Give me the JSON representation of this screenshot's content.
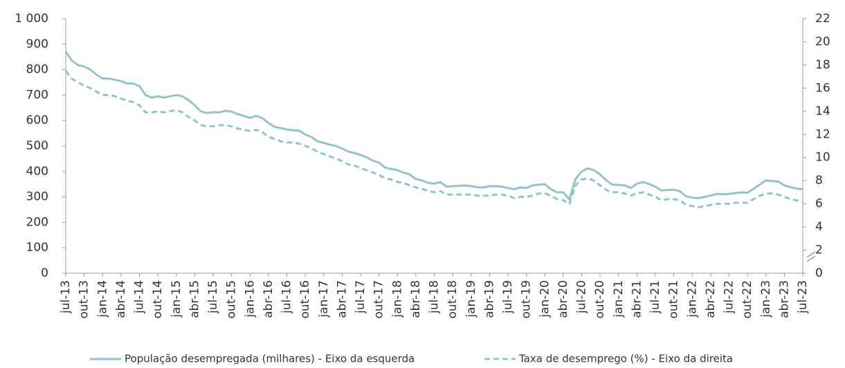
{
  "chart_data": {
    "type": "line",
    "categories": [
      "jul-13",
      null,
      null,
      "out-13",
      null,
      null,
      "jan-14",
      null,
      null,
      "abr-14",
      null,
      null,
      "jul-14",
      null,
      null,
      "out-14",
      null,
      null,
      "jan-15",
      null,
      null,
      "abr-15",
      null,
      null,
      "jul-15",
      null,
      null,
      "out-15",
      null,
      null,
      "jan-16",
      null,
      null,
      "abr-16",
      null,
      null,
      "jul-16",
      null,
      null,
      "out-16",
      null,
      null,
      "jan-17",
      null,
      null,
      "abr-17",
      null,
      null,
      "jul-17",
      null,
      null,
      "out-17",
      null,
      null,
      "jan-18",
      null,
      null,
      "abr-18",
      null,
      null,
      "jul-18",
      null,
      null,
      "out-18",
      null,
      null,
      "jan-19",
      null,
      null,
      "abr-19",
      null,
      null,
      "jul-19",
      null,
      null,
      "out-19",
      null,
      null,
      "jan-20",
      null,
      null,
      "abr-20",
      null,
      null,
      "jul-20",
      null,
      null,
      "out-20",
      null,
      null,
      "jan-21",
      null,
      null,
      "abr-21",
      null,
      null,
      "jul-21",
      null,
      null,
      "out-21",
      null,
      null,
      "jan-22",
      null,
      null,
      "abr-22",
      null,
      null,
      "jul-22",
      null,
      null,
      "out-22",
      null,
      null,
      "jan-23",
      null,
      null,
      "abr-23",
      null,
      null,
      "jul-23"
    ],
    "series": [
      {
        "name": "População desempregada (milhares) - Eixo da esquerda",
        "color": "#8ec5cb",
        "dash": false,
        "values": [
          870,
          835,
          818,
          812,
          800,
          780,
          765,
          765,
          760,
          755,
          745,
          745,
          735,
          700,
          690,
          695,
          690,
          695,
          700,
          695,
          680,
          660,
          635,
          630,
          632,
          632,
          638,
          635,
          625,
          618,
          610,
          618,
          610,
          590,
          575,
          570,
          565,
          562,
          560,
          545,
          535,
          518,
          512,
          505,
          500,
          490,
          478,
          472,
          465,
          455,
          442,
          435,
          415,
          410,
          405,
          395,
          388,
          370,
          365,
          355,
          352,
          358,
          340,
          342,
          343,
          345,
          342,
          338,
          337,
          342,
          342,
          340,
          335,
          330,
          337,
          335,
          345,
          348,
          350,
          330,
          318,
          318,
          290,
          370,
          400,
          412,
          405,
          388,
          365,
          348,
          347,
          345,
          335,
          352,
          358,
          350,
          340,
          325,
          327,
          328,
          322,
          302,
          297,
          295,
          300,
          305,
          312,
          310,
          312,
          315,
          318,
          316,
          332,
          348,
          365,
          362,
          360,
          345,
          338,
          333,
          330
        ]
      },
      {
        "name": "Taxa de desemprego (%) - Eixo da direita",
        "color": "#8ec5cb",
        "dash": true,
        "axis": "y2",
        "values": [
          17.5,
          16.8,
          16.5,
          16.2,
          16.0,
          15.7,
          15.4,
          15.4,
          15.3,
          15.1,
          14.9,
          14.8,
          14.5,
          13.9,
          13.9,
          14.0,
          13.9,
          14.0,
          14.1,
          13.9,
          13.5,
          13.2,
          12.8,
          12.7,
          12.7,
          12.8,
          12.8,
          12.7,
          12.5,
          12.4,
          12.3,
          12.4,
          12.2,
          11.8,
          11.6,
          11.4,
          11.3,
          11.3,
          11.2,
          11.0,
          10.8,
          10.5,
          10.3,
          10.1,
          9.9,
          9.7,
          9.4,
          9.3,
          9.1,
          8.9,
          8.7,
          8.5,
          8.2,
          8.1,
          7.9,
          7.8,
          7.6,
          7.4,
          7.3,
          7.1,
          7.0,
          7.1,
          6.8,
          6.8,
          6.8,
          6.8,
          6.8,
          6.7,
          6.7,
          6.7,
          6.8,
          6.8,
          6.7,
          6.5,
          6.6,
          6.6,
          6.7,
          6.9,
          6.9,
          6.7,
          6.4,
          6.3,
          6.0,
          7.6,
          8.1,
          8.2,
          8.0,
          7.6,
          7.2,
          7.0,
          7.0,
          6.9,
          6.7,
          6.9,
          7.0,
          6.8,
          6.6,
          6.3,
          6.4,
          6.4,
          6.3,
          5.9,
          5.8,
          5.7,
          5.8,
          5.9,
          6.0,
          6.0,
          6.0,
          6.1,
          6.1,
          6.1,
          6.4,
          6.7,
          6.9,
          6.9,
          6.8,
          6.6,
          6.4,
          6.3,
          6.2
        ]
      }
    ],
    "ylim": [
      0,
      1000
    ],
    "yticks": [
      0,
      100,
      200,
      300,
      400,
      500,
      600,
      700,
      800,
      900,
      {
        "value": 1000,
        "label": "1 000"
      }
    ],
    "y2lim": [
      0,
      22
    ],
    "y2ticks": [
      0,
      2,
      4,
      6,
      8,
      10,
      12,
      14,
      16,
      18,
      20,
      22
    ],
    "grid": false
  }
}
